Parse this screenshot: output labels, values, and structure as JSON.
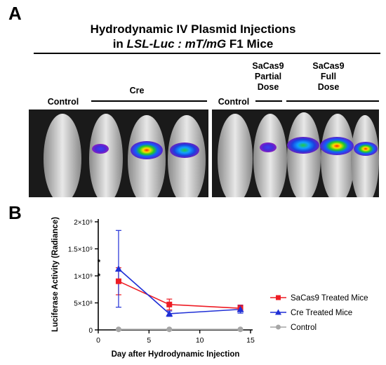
{
  "panel_a": {
    "letter": "A",
    "title_line1": "Hydrodynamic IV Plasmid Injections",
    "title_line2_prefix": "in ",
    "title_line2_italic": "LSL-Luc : mT/mG",
    "title_line2_suffix": " F1 Mice",
    "left_groups": {
      "control": "Control",
      "cre": "Cre"
    },
    "right_groups": {
      "control": "Control",
      "partial": [
        "SaCas9",
        "Partial",
        "Dose"
      ],
      "full": [
        "SaCas9",
        "Full",
        "Dose"
      ]
    }
  },
  "panel_b": {
    "letter": "B",
    "colors": {
      "sacas9": "#ee1c24",
      "cre": "#1f2fd6",
      "control": "#a6a6a6"
    },
    "significance": [
      "*",
      "*"
    ]
  },
  "chart_data": {
    "type": "line",
    "xlabel": "Day after Hydrodynamic Injection",
    "ylabel": "Luciferase Activity (Radiance)",
    "xlim": [
      0,
      15
    ],
    "ylim": [
      0,
      2000000000
    ],
    "x_ticks": [
      "0",
      "5",
      "10",
      "15"
    ],
    "y_ticks": [
      "0",
      "5×10⁸",
      "1×10⁹",
      "1.5×10⁹",
      "2×10⁹"
    ],
    "legend_position": "right",
    "series": [
      {
        "name": "SaCas9 Treated Mice",
        "color": "#ee1c24",
        "marker": "square",
        "x": [
          2,
          7,
          14
        ],
        "y": [
          900000000,
          470000000,
          400000000
        ],
        "err": [
          250000000,
          100000000,
          60000000
        ]
      },
      {
        "name": "Cre Treated Mice",
        "color": "#1f2fd6",
        "marker": "triangle",
        "x": [
          2,
          7,
          14
        ],
        "y": [
          1130000000,
          300000000,
          380000000
        ],
        "err": [
          710000000,
          50000000,
          70000000
        ]
      },
      {
        "name": "Control",
        "color": "#a6a6a6",
        "marker": "circle",
        "x": [
          2,
          7,
          14
        ],
        "y": [
          10000000,
          10000000,
          10000000
        ],
        "err": [
          0,
          0,
          0
        ]
      }
    ]
  }
}
